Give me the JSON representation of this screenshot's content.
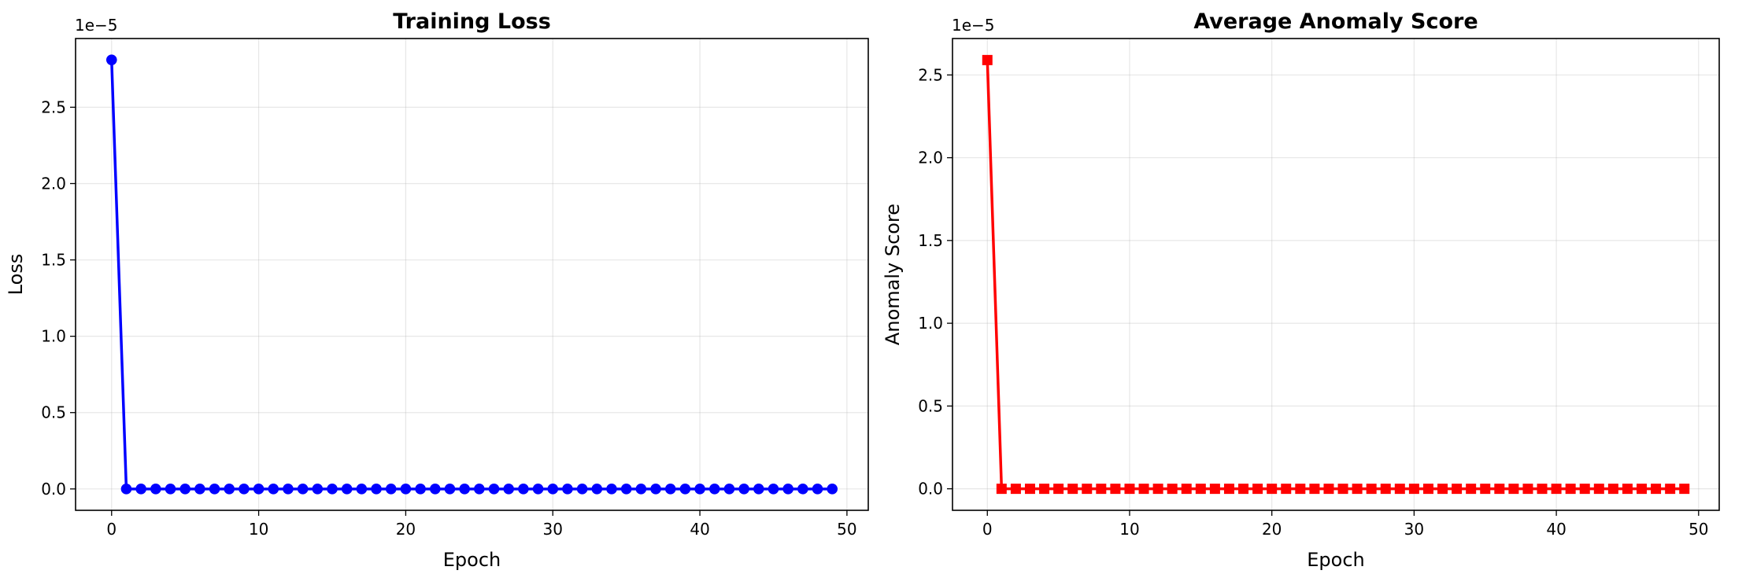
{
  "chart_data": [
    {
      "type": "line",
      "title": "Training Loss",
      "xlabel": "Epoch",
      "ylabel": "Loss",
      "y_offset_label": "1e−5",
      "xlim": [
        -2.45,
        51.45
      ],
      "ylim": [
        -0.14,
        2.95
      ],
      "xticks": [
        0,
        10,
        20,
        30,
        40,
        50
      ],
      "yticks": [
        0.0,
        0.5,
        1.0,
        1.5,
        2.0,
        2.5
      ],
      "grid": true,
      "series": [
        {
          "color": "#0000ff",
          "marker": "circle",
          "x": [
            0,
            1,
            2,
            3,
            4,
            5,
            6,
            7,
            8,
            9,
            10,
            11,
            12,
            13,
            14,
            15,
            16,
            17,
            18,
            19,
            20,
            21,
            22,
            23,
            24,
            25,
            26,
            27,
            28,
            29,
            30,
            31,
            32,
            33,
            34,
            35,
            36,
            37,
            38,
            39,
            40,
            41,
            42,
            43,
            44,
            45,
            46,
            47,
            48,
            49
          ],
          "y": [
            2.81,
            0,
            0,
            0,
            0,
            0,
            0,
            0,
            0,
            0,
            0,
            0,
            0,
            0,
            0,
            0,
            0,
            0,
            0,
            0,
            0,
            0,
            0,
            0,
            0,
            0,
            0,
            0,
            0,
            0,
            0,
            0,
            0,
            0,
            0,
            0,
            0,
            0,
            0,
            0,
            0,
            0,
            0,
            0,
            0,
            0,
            0,
            0,
            0,
            0
          ]
        }
      ]
    },
    {
      "type": "line",
      "title": "Average Anomaly Score",
      "xlabel": "Epoch",
      "ylabel": "Anomaly Score",
      "y_offset_label": "1e−5",
      "xlim": [
        -2.45,
        51.45
      ],
      "ylim": [
        -0.13,
        2.72
      ],
      "xticks": [
        0,
        10,
        20,
        30,
        40,
        50
      ],
      "yticks": [
        0.0,
        0.5,
        1.0,
        1.5,
        2.0,
        2.5
      ],
      "grid": true,
      "series": [
        {
          "color": "#ff0000",
          "marker": "square",
          "x": [
            0,
            1,
            2,
            3,
            4,
            5,
            6,
            7,
            8,
            9,
            10,
            11,
            12,
            13,
            14,
            15,
            16,
            17,
            18,
            19,
            20,
            21,
            22,
            23,
            24,
            25,
            26,
            27,
            28,
            29,
            30,
            31,
            32,
            33,
            34,
            35,
            36,
            37,
            38,
            39,
            40,
            41,
            42,
            43,
            44,
            45,
            46,
            47,
            48,
            49
          ],
          "y": [
            2.59,
            0,
            0,
            0,
            0,
            0,
            0,
            0,
            0,
            0,
            0,
            0,
            0,
            0,
            0,
            0,
            0,
            0,
            0,
            0,
            0,
            0,
            0,
            0,
            0,
            0,
            0,
            0,
            0,
            0,
            0,
            0,
            0,
            0,
            0,
            0,
            0,
            0,
            0,
            0,
            0,
            0,
            0,
            0,
            0,
            0,
            0,
            0,
            0,
            0
          ]
        }
      ]
    }
  ]
}
